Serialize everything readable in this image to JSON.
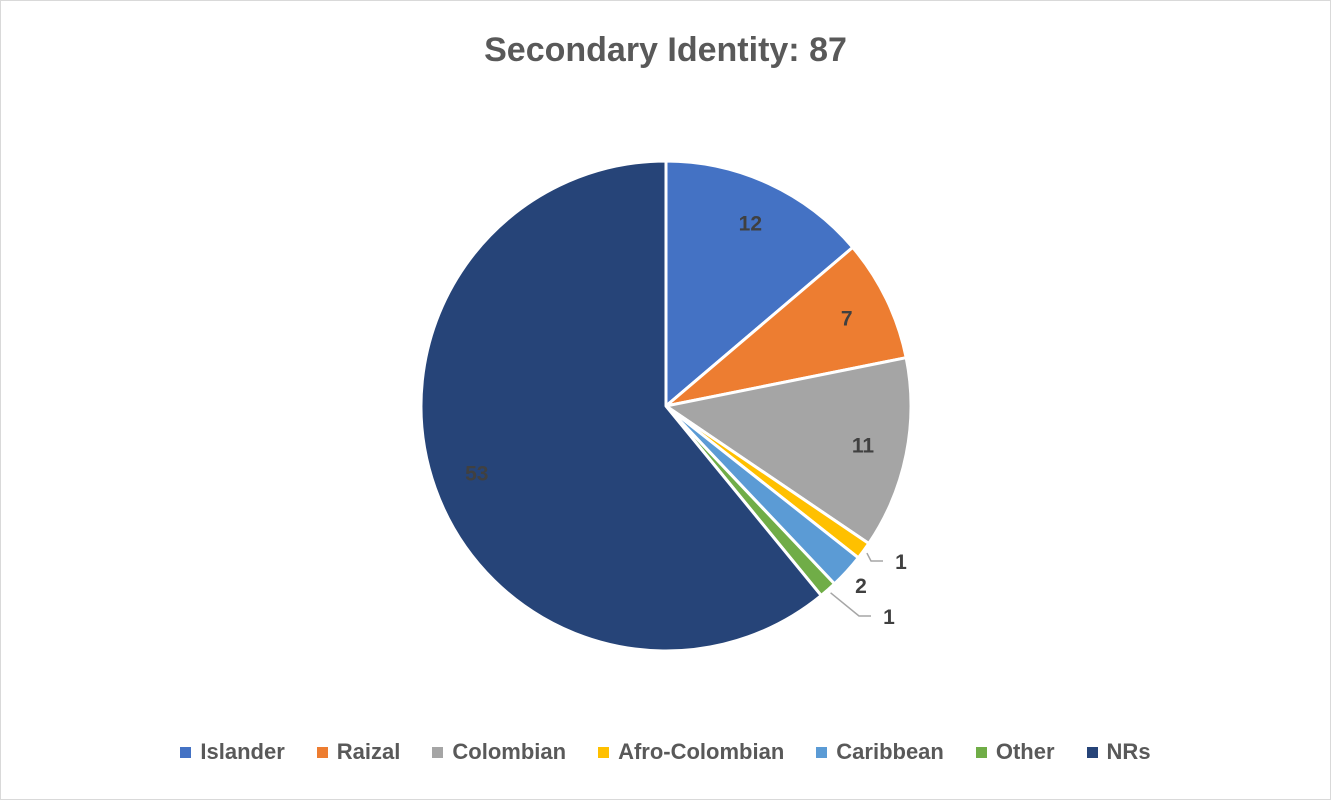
{
  "chart_data": {
    "type": "pie",
    "title": "Secondary Identity: 87",
    "categories": [
      "Islander",
      "Raizal",
      "Colombian",
      "Afro-Colombian",
      "Caribbean",
      "Other",
      "NRs"
    ],
    "values": [
      12,
      7,
      11,
      1,
      2,
      1,
      53
    ],
    "colors": [
      "#4472C4",
      "#ED7D31",
      "#A5A5A5",
      "#FFC000",
      "#5B9BD5",
      "#70AD47",
      "#264478"
    ],
    "data_label_color": "#404040",
    "legend": "bottom",
    "start_angle": "12 o'clock",
    "direction": "clockwise"
  }
}
